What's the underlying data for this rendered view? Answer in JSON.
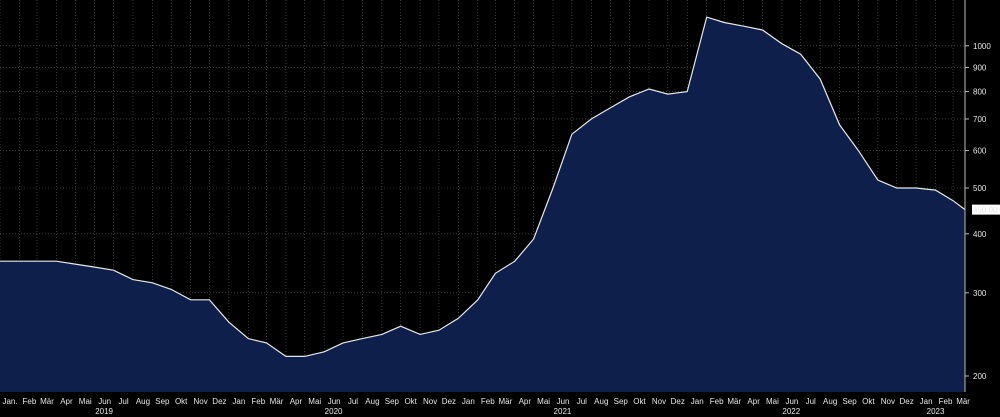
{
  "chart_data": {
    "type": "area",
    "title": "",
    "xlabel": "",
    "ylabel": "",
    "y_scale": "log",
    "ylim": [
      185,
      1250
    ],
    "y_ticks": [
      200,
      300,
      400,
      500,
      600,
      700,
      800,
      900,
      1000
    ],
    "y_label_edge": "",
    "last_value_label": "450.00",
    "grid": true,
    "colors": {
      "fill": "#0d1f4a",
      "line": "#e8e8e8",
      "grid": "#5a5a5a",
      "background": "#000000"
    },
    "x_range": [
      "2019-01-01",
      "2023-03-20"
    ],
    "month_labels": [
      {
        "date": "2019-01-01",
        "label": "Jan."
      },
      {
        "date": "2019-02-01",
        "label": "Feb"
      },
      {
        "date": "2019-03-01",
        "label": "Mär"
      },
      {
        "date": "2019-04-01",
        "label": "Apr"
      },
      {
        "date": "2019-05-01",
        "label": "Mai"
      },
      {
        "date": "2019-06-01",
        "label": "Jun"
      },
      {
        "date": "2019-07-01",
        "label": "Jul"
      },
      {
        "date": "2019-08-01",
        "label": "Aug"
      },
      {
        "date": "2019-09-01",
        "label": "Sep"
      },
      {
        "date": "2019-10-01",
        "label": "Okt"
      },
      {
        "date": "2019-11-01",
        "label": "Nov"
      },
      {
        "date": "2019-12-01",
        "label": "Dez"
      },
      {
        "date": "2020-01-01",
        "label": "Jan"
      },
      {
        "date": "2020-02-01",
        "label": "Feb"
      },
      {
        "date": "2020-03-01",
        "label": "Mär"
      },
      {
        "date": "2020-04-01",
        "label": "Apr"
      },
      {
        "date": "2020-05-01",
        "label": "Mai"
      },
      {
        "date": "2020-06-01",
        "label": "Jun"
      },
      {
        "date": "2020-07-01",
        "label": "Jul"
      },
      {
        "date": "2020-08-01",
        "label": "Aug"
      },
      {
        "date": "2020-09-01",
        "label": "Sep"
      },
      {
        "date": "2020-10-01",
        "label": "Okt"
      },
      {
        "date": "2020-11-01",
        "label": "Nov"
      },
      {
        "date": "2020-12-01",
        "label": "Dez"
      },
      {
        "date": "2021-01-01",
        "label": "Jan"
      },
      {
        "date": "2021-02-01",
        "label": "Feb"
      },
      {
        "date": "2021-03-01",
        "label": "Mär"
      },
      {
        "date": "2021-04-01",
        "label": "Apr"
      },
      {
        "date": "2021-05-01",
        "label": "Mai"
      },
      {
        "date": "2021-06-01",
        "label": "Jun"
      },
      {
        "date": "2021-07-01",
        "label": "Jul"
      },
      {
        "date": "2021-08-01",
        "label": "Aug"
      },
      {
        "date": "2021-09-01",
        "label": "Sep"
      },
      {
        "date": "2021-10-01",
        "label": "Okt"
      },
      {
        "date": "2021-11-01",
        "label": "Nov"
      },
      {
        "date": "2021-12-01",
        "label": "Dez"
      },
      {
        "date": "2022-01-01",
        "label": "Jan"
      },
      {
        "date": "2022-02-01",
        "label": "Feb"
      },
      {
        "date": "2022-03-01",
        "label": "Mär"
      },
      {
        "date": "2022-04-01",
        "label": "Apr"
      },
      {
        "date": "2022-05-01",
        "label": "Mai"
      },
      {
        "date": "2022-06-01",
        "label": "Jun"
      },
      {
        "date": "2022-07-01",
        "label": "Jul"
      },
      {
        "date": "2022-08-01",
        "label": "Aug"
      },
      {
        "date": "2022-09-01",
        "label": "Sep"
      },
      {
        "date": "2022-10-01",
        "label": "Okt"
      },
      {
        "date": "2022-11-01",
        "label": "Nov"
      },
      {
        "date": "2022-12-01",
        "label": "Dez"
      },
      {
        "date": "2023-01-01",
        "label": "Jan"
      },
      {
        "date": "2023-02-01",
        "label": "Feb"
      },
      {
        "date": "2023-03-01",
        "label": "Mär"
      }
    ],
    "year_labels": [
      {
        "date": "2019-06-16",
        "label": "2019"
      },
      {
        "date": "2020-06-16",
        "label": "2020"
      },
      {
        "date": "2021-06-16",
        "label": "2021"
      },
      {
        "date": "2022-06-16",
        "label": "2022"
      },
      {
        "date": "2023-02-01",
        "label": "2023"
      }
    ],
    "x": [
      "2019-01-01",
      "2019-02-01",
      "2019-03-01",
      "2019-04-01",
      "2019-05-01",
      "2019-06-01",
      "2019-07-01",
      "2019-08-01",
      "2019-09-01",
      "2019-10-01",
      "2019-11-01",
      "2019-12-01",
      "2020-01-01",
      "2020-02-01",
      "2020-03-01",
      "2020-04-01",
      "2020-05-01",
      "2020-06-01",
      "2020-07-01",
      "2020-08-01",
      "2020-09-01",
      "2020-10-01",
      "2020-11-01",
      "2020-12-01",
      "2021-01-01",
      "2021-02-01",
      "2021-03-01",
      "2021-04-01",
      "2021-05-01",
      "2021-06-01",
      "2021-07-01",
      "2021-08-01",
      "2021-09-01",
      "2021-10-01",
      "2021-11-01",
      "2021-12-01",
      "2022-01-01",
      "2022-02-01",
      "2022-03-01",
      "2022-04-01",
      "2022-05-01",
      "2022-06-01",
      "2022-07-01",
      "2022-08-01",
      "2022-09-01",
      "2022-10-01",
      "2022-11-01",
      "2022-12-01",
      "2023-01-01",
      "2023-02-01",
      "2023-03-01",
      "2023-03-20"
    ],
    "values": [
      350,
      350,
      350,
      350,
      345,
      340,
      335,
      320,
      315,
      305,
      290,
      290,
      260,
      240,
      235,
      220,
      220,
      225,
      235,
      240,
      245,
      255,
      245,
      250,
      265,
      290,
      330,
      350,
      390,
      500,
      650,
      700,
      740,
      780,
      810,
      790,
      800,
      1150,
      1120,
      1100,
      1080,
      1010,
      960,
      850,
      680,
      600,
      520,
      500,
      500,
      495,
      470,
      450
    ]
  }
}
